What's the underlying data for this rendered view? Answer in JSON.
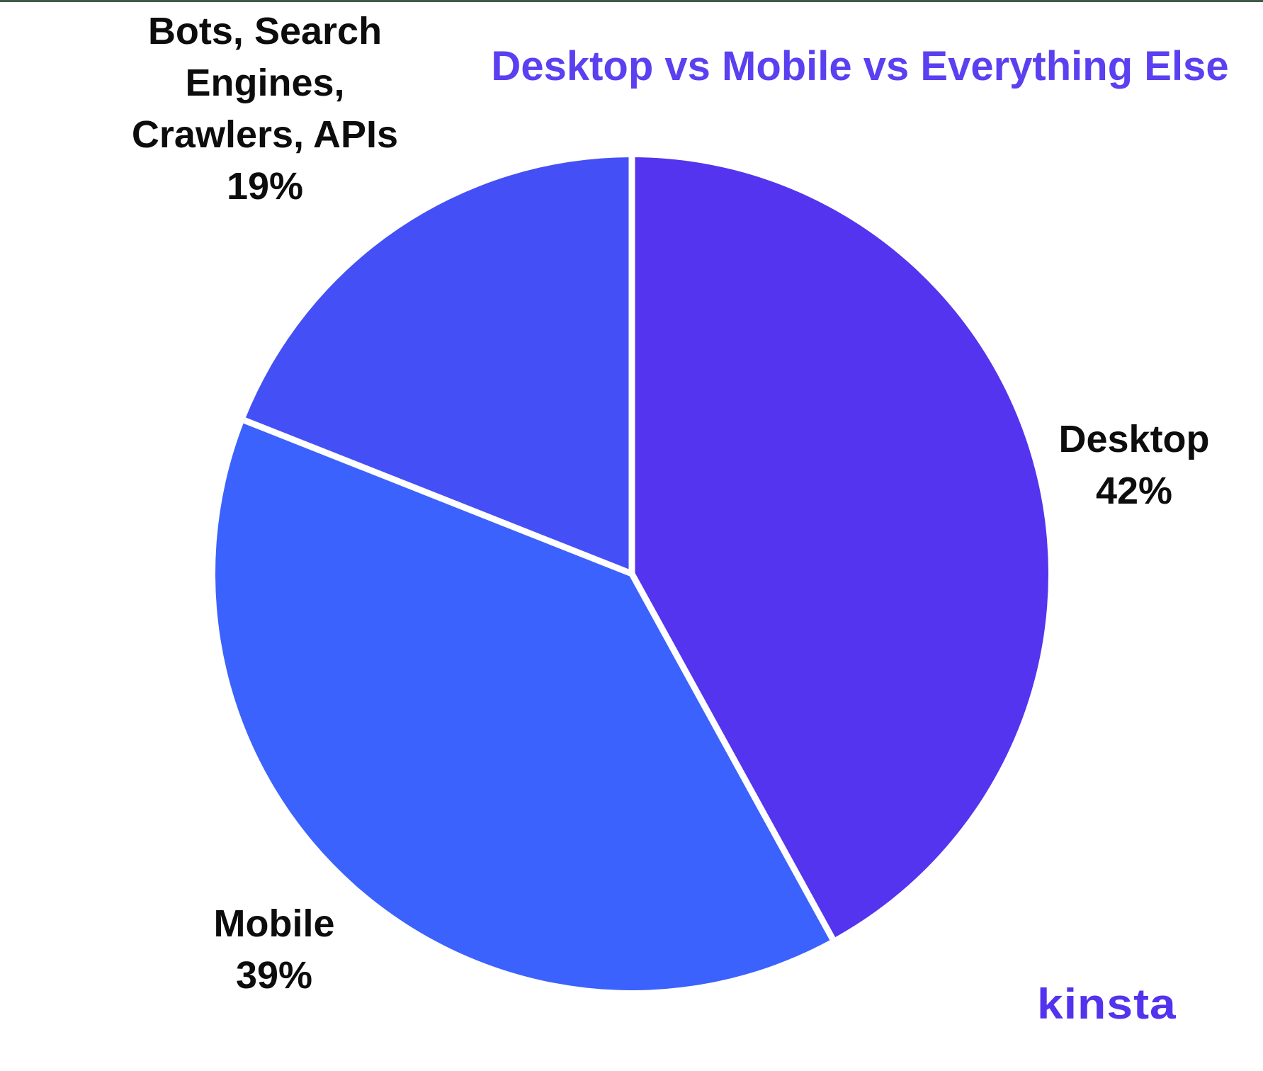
{
  "page": {
    "background": "#ffffff",
    "top_line_color": "#3f5a48"
  },
  "chart_data": {
    "type": "pie",
    "title": "Desktop vs Mobile vs Everything Else",
    "title_color": "#5a40f0",
    "start_angle_deg": 0,
    "direction": "clockwise",
    "separator_color": "#ffffff",
    "legend": "none",
    "labels_position": "outside",
    "slices": [
      {
        "label": "Desktop",
        "value": 42,
        "percent_label": "42%",
        "color": "#5434ee"
      },
      {
        "label": "Mobile",
        "value": 39,
        "percent_label": "39%",
        "color": "#3b62fc"
      },
      {
        "label": "Bots, Search Engines, Crawlers, APIs",
        "value": 19,
        "percent_label": "19%",
        "color": "#4450f5"
      }
    ]
  },
  "labels": {
    "bots": {
      "lines": [
        "Bots, Search",
        "Engines,",
        "Crawlers, APIs",
        "19%"
      ]
    },
    "desktop": {
      "lines": [
        "Desktop",
        "42%"
      ]
    },
    "mobile": {
      "lines": [
        "Mobile",
        "39%"
      ]
    }
  },
  "brand": {
    "logo_text": "kinsta",
    "color": "#5333ed"
  }
}
